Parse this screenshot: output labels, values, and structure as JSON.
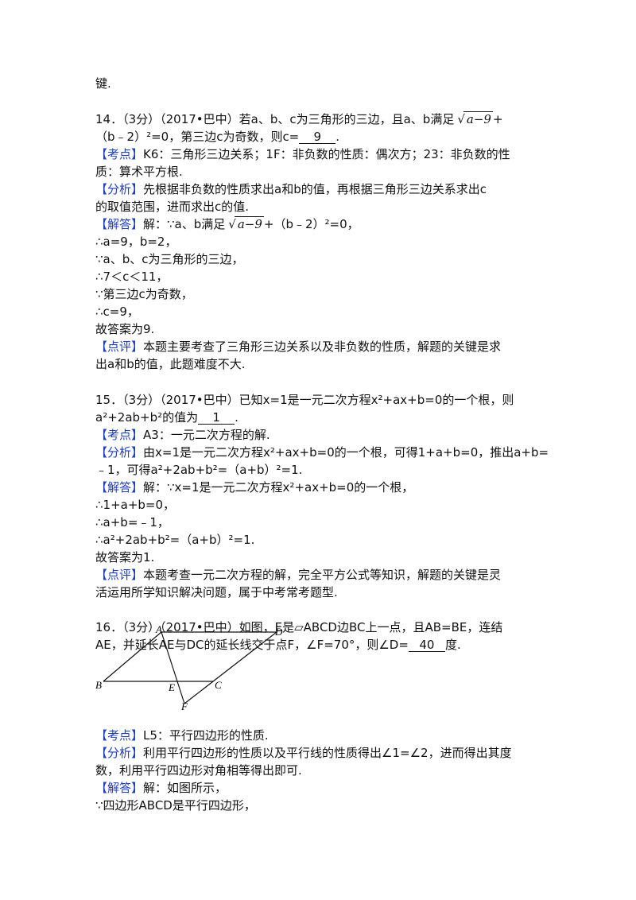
{
  "lines": [
    [
      "键."
    ],
    [
      "14．（3分）（2017•巴中）若a、b、c为三角形的三边，且a、b满足",
      {
        "style": "sqrt",
        "text": "a−9"
      },
      "+"
    ],
    [
      "（b﹣2）²=0，第三边c为奇数，则c=",
      {
        "style": "answer",
        "text": "9"
      },
      "."
    ],
    [
      {
        "style": "tag",
        "text": "【考点】"
      },
      "K6：三角形三边关系；1F：非负数的性质：偶次方；23：非负数的性"
    ],
    [
      "质：算术平方根."
    ],
    [
      {
        "style": "tag",
        "text": "【分析】"
      },
      "先根据非负数的性质求出a和b的值，再根据三角形三边关系求出c"
    ],
    [
      "的取值范围，进而求出c的值."
    ],
    [
      {
        "style": "tag",
        "text": "【解答】"
      },
      "解：∵a、b满足",
      {
        "style": "sqrt",
        "text": "a−9"
      },
      "+（b﹣2）²=0，"
    ],
    [
      "∴a=9，b=2，"
    ],
    [
      "∵a、b、c为三角形的三边，"
    ],
    [
      "∴7＜c＜11，"
    ],
    [
      "∵第三边c为奇数，"
    ],
    [
      "∴c=9，"
    ],
    [
      "故答案为9."
    ],
    [
      {
        "style": "tag",
        "text": "【点评】"
      },
      "本题主要考查了三角形三边关系以及非负数的性质，解题的关键是求"
    ],
    [
      "出a和b的值，此题难度不大."
    ],
    [
      "15．（3分）（2017•巴中）已知x=1是一元二次方程x²+ax+b=0的一个根，则"
    ],
    [
      "a²+2ab+b²的值为",
      {
        "style": "answer",
        "text": "1"
      },
      "."
    ],
    [
      {
        "style": "tag",
        "text": "【考点】"
      },
      "A3：一元二次方程的解."
    ],
    [
      {
        "style": "tag",
        "text": "【分析】"
      },
      "由x=1是一元二次方程x²+ax+b=0的一个根，可得1+a+b=0，推出a+b="
    ],
    [
      "﹣1，可得a²+2ab+b²=（a+b）²=1."
    ],
    [
      {
        "style": "tag",
        "text": "【解答】"
      },
      "解：∵x=1是一元二次方程x²+ax+b=0的一个根，"
    ],
    [
      "∴1+a+b=0，"
    ],
    [
      "∴a+b=﹣1，"
    ],
    [
      "∴a²+2ab+b²=（a+b）²=1."
    ],
    [
      "故答案为1."
    ],
    [
      {
        "style": "tag",
        "text": "【点评】"
      },
      "本题考查一元二次方程的解，完全平方公式等知识，解题的关键是灵"
    ],
    [
      "活运用所学知识解决问题，属于中考常考题型."
    ],
    [
      "16．（3分）（2017•巴中）如图，E是▱ABCD边BC上一点，且AB=BE，连结"
    ],
    [
      "AE，并延长AE与DC的延长线交于点F，∠F=70°，则∠D=",
      {
        "style": "answer",
        "text": "40"
      },
      "度."
    ],
    [
      {
        "style": "tag",
        "text": "【考点】"
      },
      "L5：平行四边形的性质."
    ],
    [
      {
        "style": "tag",
        "text": "【分析】"
      },
      "利用平行四边形的性质以及平行线的性质得出∠1=∠2，进而得出其度"
    ],
    [
      "数，利用平行四边形对角相等得出即可."
    ],
    [
      {
        "style": "tag",
        "text": "【解答】"
      },
      "解：如图所示，"
    ],
    [
      "∵四边形ABCD是平行四边形，"
    ]
  ],
  "figure": {
    "labels": [
      "A",
      "D",
      "B",
      "E",
      "C",
      "F"
    ]
  }
}
